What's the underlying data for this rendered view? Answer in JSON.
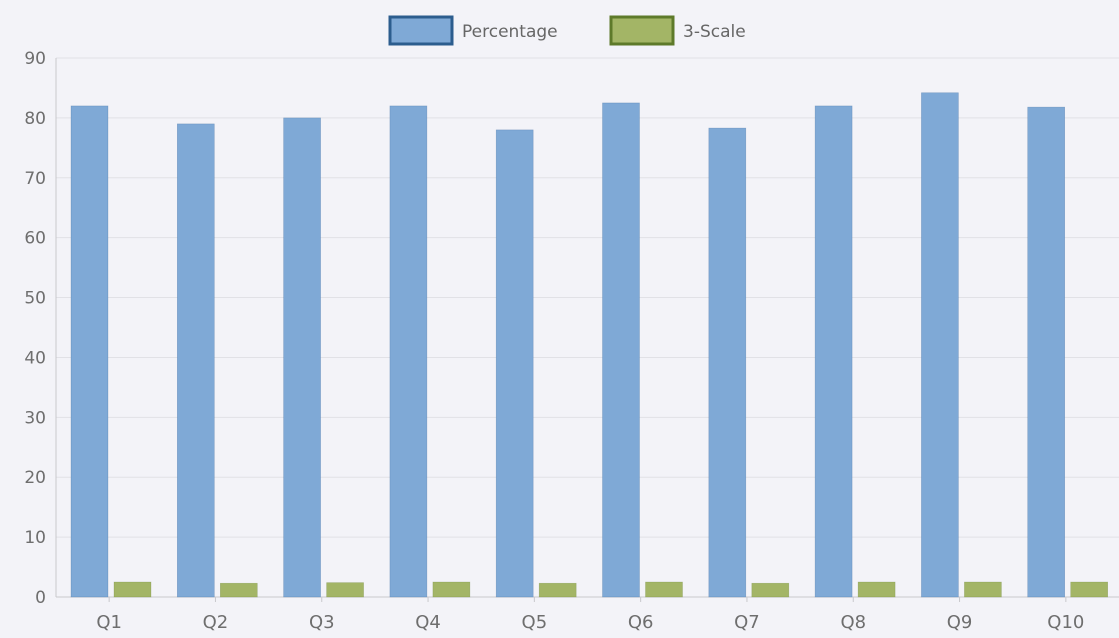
{
  "chart_data": {
    "type": "bar",
    "categories": [
      "Q1",
      "Q2",
      "Q3",
      "Q4",
      "Q5",
      "Q6",
      "Q7",
      "Q8",
      "Q9",
      "Q10"
    ],
    "series": [
      {
        "name": "Percentage",
        "values": [
          82,
          79,
          80,
          82,
          78,
          82.5,
          78.3,
          82,
          84.2,
          81.8
        ],
        "fill": "#7fa9d6",
        "stroke": "#2c5d8e"
      },
      {
        "name": "3-Scale",
        "values": [
          2.5,
          2.3,
          2.4,
          2.5,
          2.3,
          2.5,
          2.3,
          2.5,
          2.5,
          2.5
        ],
        "fill": "#a3b566",
        "stroke": "#5e7a2a"
      }
    ],
    "ylim": [
      0,
      90
    ],
    "yticks": [
      0,
      10,
      20,
      30,
      40,
      50,
      60,
      70,
      80,
      90
    ],
    "grid": true,
    "legend_position": "top-center"
  }
}
